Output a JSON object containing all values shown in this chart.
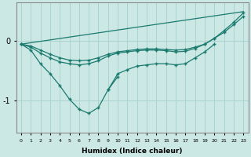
{
  "xlabel": "Humidex (Indice chaleur)",
  "bg_color": "#cce8e5",
  "line_color": "#1a7a6e",
  "grid_color": "#aad4d0",
  "x": [
    0,
    1,
    2,
    3,
    4,
    5,
    6,
    7,
    8,
    9,
    10,
    11,
    12,
    13,
    14,
    15,
    16,
    17,
    18,
    19,
    20,
    21,
    22,
    23
  ],
  "line_diag": [
    [
      -0.05,
      0.5
    ]
  ],
  "line_upper": [
    -0.05,
    -0.08,
    -0.15,
    -0.22,
    -0.28,
    -0.32,
    -0.33,
    -0.32,
    -0.28,
    -0.22,
    -0.18,
    -0.16,
    -0.14,
    -0.13,
    -0.13,
    -0.14,
    -0.15,
    -0.14,
    -0.1,
    -0.05,
    0.05,
    0.15,
    0.28,
    0.42
  ],
  "line_mid": [
    -0.05,
    -0.1,
    -0.2,
    -0.28,
    -0.35,
    -0.38,
    -0.4,
    -0.38,
    -0.33,
    -0.25,
    -0.2,
    -0.18,
    -0.16,
    -0.15,
    -0.15,
    -0.16,
    -0.18,
    -0.17,
    -0.12,
    -0.05,
    0.05,
    0.18,
    0.32,
    0.48
  ],
  "line_low": [
    -0.05,
    -0.15,
    -0.38,
    -0.55,
    -0.75,
    -0.98,
    -1.15,
    -1.22,
    -1.12,
    -0.82,
    -0.6,
    null,
    null,
    null,
    null,
    null,
    null,
    null,
    null,
    null,
    null,
    null,
    null,
    null
  ],
  "line_low2": [
    null,
    null,
    null,
    null,
    null,
    null,
    null,
    null,
    null,
    -0.82,
    -0.55,
    -0.48,
    -0.42,
    -0.4,
    -0.38,
    -0.38,
    -0.4,
    -0.38,
    -0.28,
    -0.18,
    -0.05,
    null,
    null,
    null
  ],
  "ylim": [
    -1.55,
    0.65
  ],
  "yticks": [
    -1.0,
    0.0
  ],
  "xlim": [
    -0.5,
    23.5
  ]
}
